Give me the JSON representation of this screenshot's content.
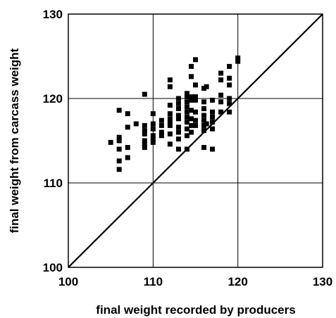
{
  "chart_data": {
    "type": "scatter",
    "title": "",
    "xlabel": "final weight recorded by producers",
    "ylabel": "final weight from carcass weight",
    "xlim": [
      100,
      130
    ],
    "ylim": [
      100,
      130
    ],
    "xticks": [
      100,
      110,
      120,
      130
    ],
    "yticks": [
      100,
      110,
      120,
      130
    ],
    "grid": true,
    "legend": "none",
    "marker": "square",
    "marker_color": "#000000",
    "reference_line": {
      "label": "",
      "x": [
        100,
        130
      ],
      "y": [
        100,
        130
      ]
    },
    "series": [
      {
        "points": [
          [
            105,
            114.8
          ],
          [
            106,
            115.4
          ],
          [
            106,
            115.0
          ],
          [
            106,
            114.0
          ],
          [
            106,
            112.6
          ],
          [
            106,
            111.6
          ],
          [
            106,
            118.6
          ],
          [
            107,
            118.2
          ],
          [
            107,
            116.6
          ],
          [
            107,
            114.2
          ],
          [
            107,
            113.0
          ],
          [
            108,
            117.0
          ],
          [
            109,
            120.5
          ],
          [
            109,
            116.8
          ],
          [
            109,
            116.2
          ],
          [
            109,
            115.8
          ],
          [
            109,
            115.0
          ],
          [
            109,
            114.6
          ],
          [
            109,
            114.2
          ],
          [
            110,
            118.2
          ],
          [
            110,
            117.0
          ],
          [
            110,
            116.4
          ],
          [
            110,
            115.6
          ],
          [
            110,
            115.2
          ],
          [
            110,
            114.8
          ],
          [
            111,
            117.4
          ],
          [
            111,
            116.8
          ],
          [
            111,
            116.0
          ],
          [
            111,
            115.6
          ],
          [
            112,
            122.2
          ],
          [
            112,
            121.4
          ],
          [
            112,
            119.2
          ],
          [
            112,
            118.2
          ],
          [
            112,
            117.6
          ],
          [
            112,
            117.2
          ],
          [
            112,
            116.8
          ],
          [
            112,
            115.8
          ],
          [
            112,
            114.6
          ],
          [
            113,
            120.0
          ],
          [
            113,
            119.4
          ],
          [
            113,
            118.8
          ],
          [
            113,
            118.0
          ],
          [
            113,
            117.6
          ],
          [
            113,
            116.6
          ],
          [
            113,
            116.0
          ],
          [
            113,
            115.2
          ],
          [
            113,
            114.0
          ],
          [
            114,
            120.6
          ],
          [
            114,
            120.2
          ],
          [
            114,
            119.6
          ],
          [
            114,
            119.0
          ],
          [
            114,
            118.4
          ],
          [
            114,
            117.8
          ],
          [
            114,
            117.2
          ],
          [
            114,
            116.4
          ],
          [
            114,
            115.6
          ],
          [
            114,
            114.0
          ],
          [
            114.5,
            123.8
          ],
          [
            114.5,
            122.6
          ],
          [
            114.5,
            120.2
          ],
          [
            114.5,
            119.8
          ],
          [
            114.5,
            118.6
          ],
          [
            114.5,
            117.6
          ],
          [
            114.5,
            116.8
          ],
          [
            114.5,
            116.0
          ],
          [
            115,
            124.6
          ],
          [
            115,
            121.6
          ],
          [
            115,
            120.2
          ],
          [
            115,
            119.8
          ],
          [
            115,
            118.4
          ],
          [
            115,
            117.4
          ],
          [
            115,
            116.8
          ],
          [
            116,
            121.2
          ],
          [
            116,
            119.6
          ],
          [
            116,
            118.8
          ],
          [
            116,
            118.0
          ],
          [
            116,
            117.4
          ],
          [
            116,
            116.8
          ],
          [
            116,
            116.2
          ],
          [
            116,
            114.2
          ],
          [
            116.3,
            121.4
          ],
          [
            116.3,
            117.0
          ],
          [
            117,
            119.8
          ],
          [
            117,
            118.4
          ],
          [
            117,
            117.8
          ],
          [
            117,
            117.2
          ],
          [
            117,
            116.4
          ],
          [
            117,
            114.0
          ],
          [
            118,
            123.0
          ],
          [
            118,
            122.2
          ],
          [
            118,
            120.4
          ],
          [
            118,
            119.6
          ],
          [
            118,
            118.4
          ],
          [
            119,
            123.8
          ],
          [
            119,
            122.4
          ],
          [
            119,
            121.6
          ],
          [
            119,
            120.0
          ],
          [
            119,
            119.4
          ],
          [
            119,
            118.4
          ],
          [
            120,
            124.8
          ],
          [
            120,
            124.4
          ]
        ]
      }
    ]
  }
}
